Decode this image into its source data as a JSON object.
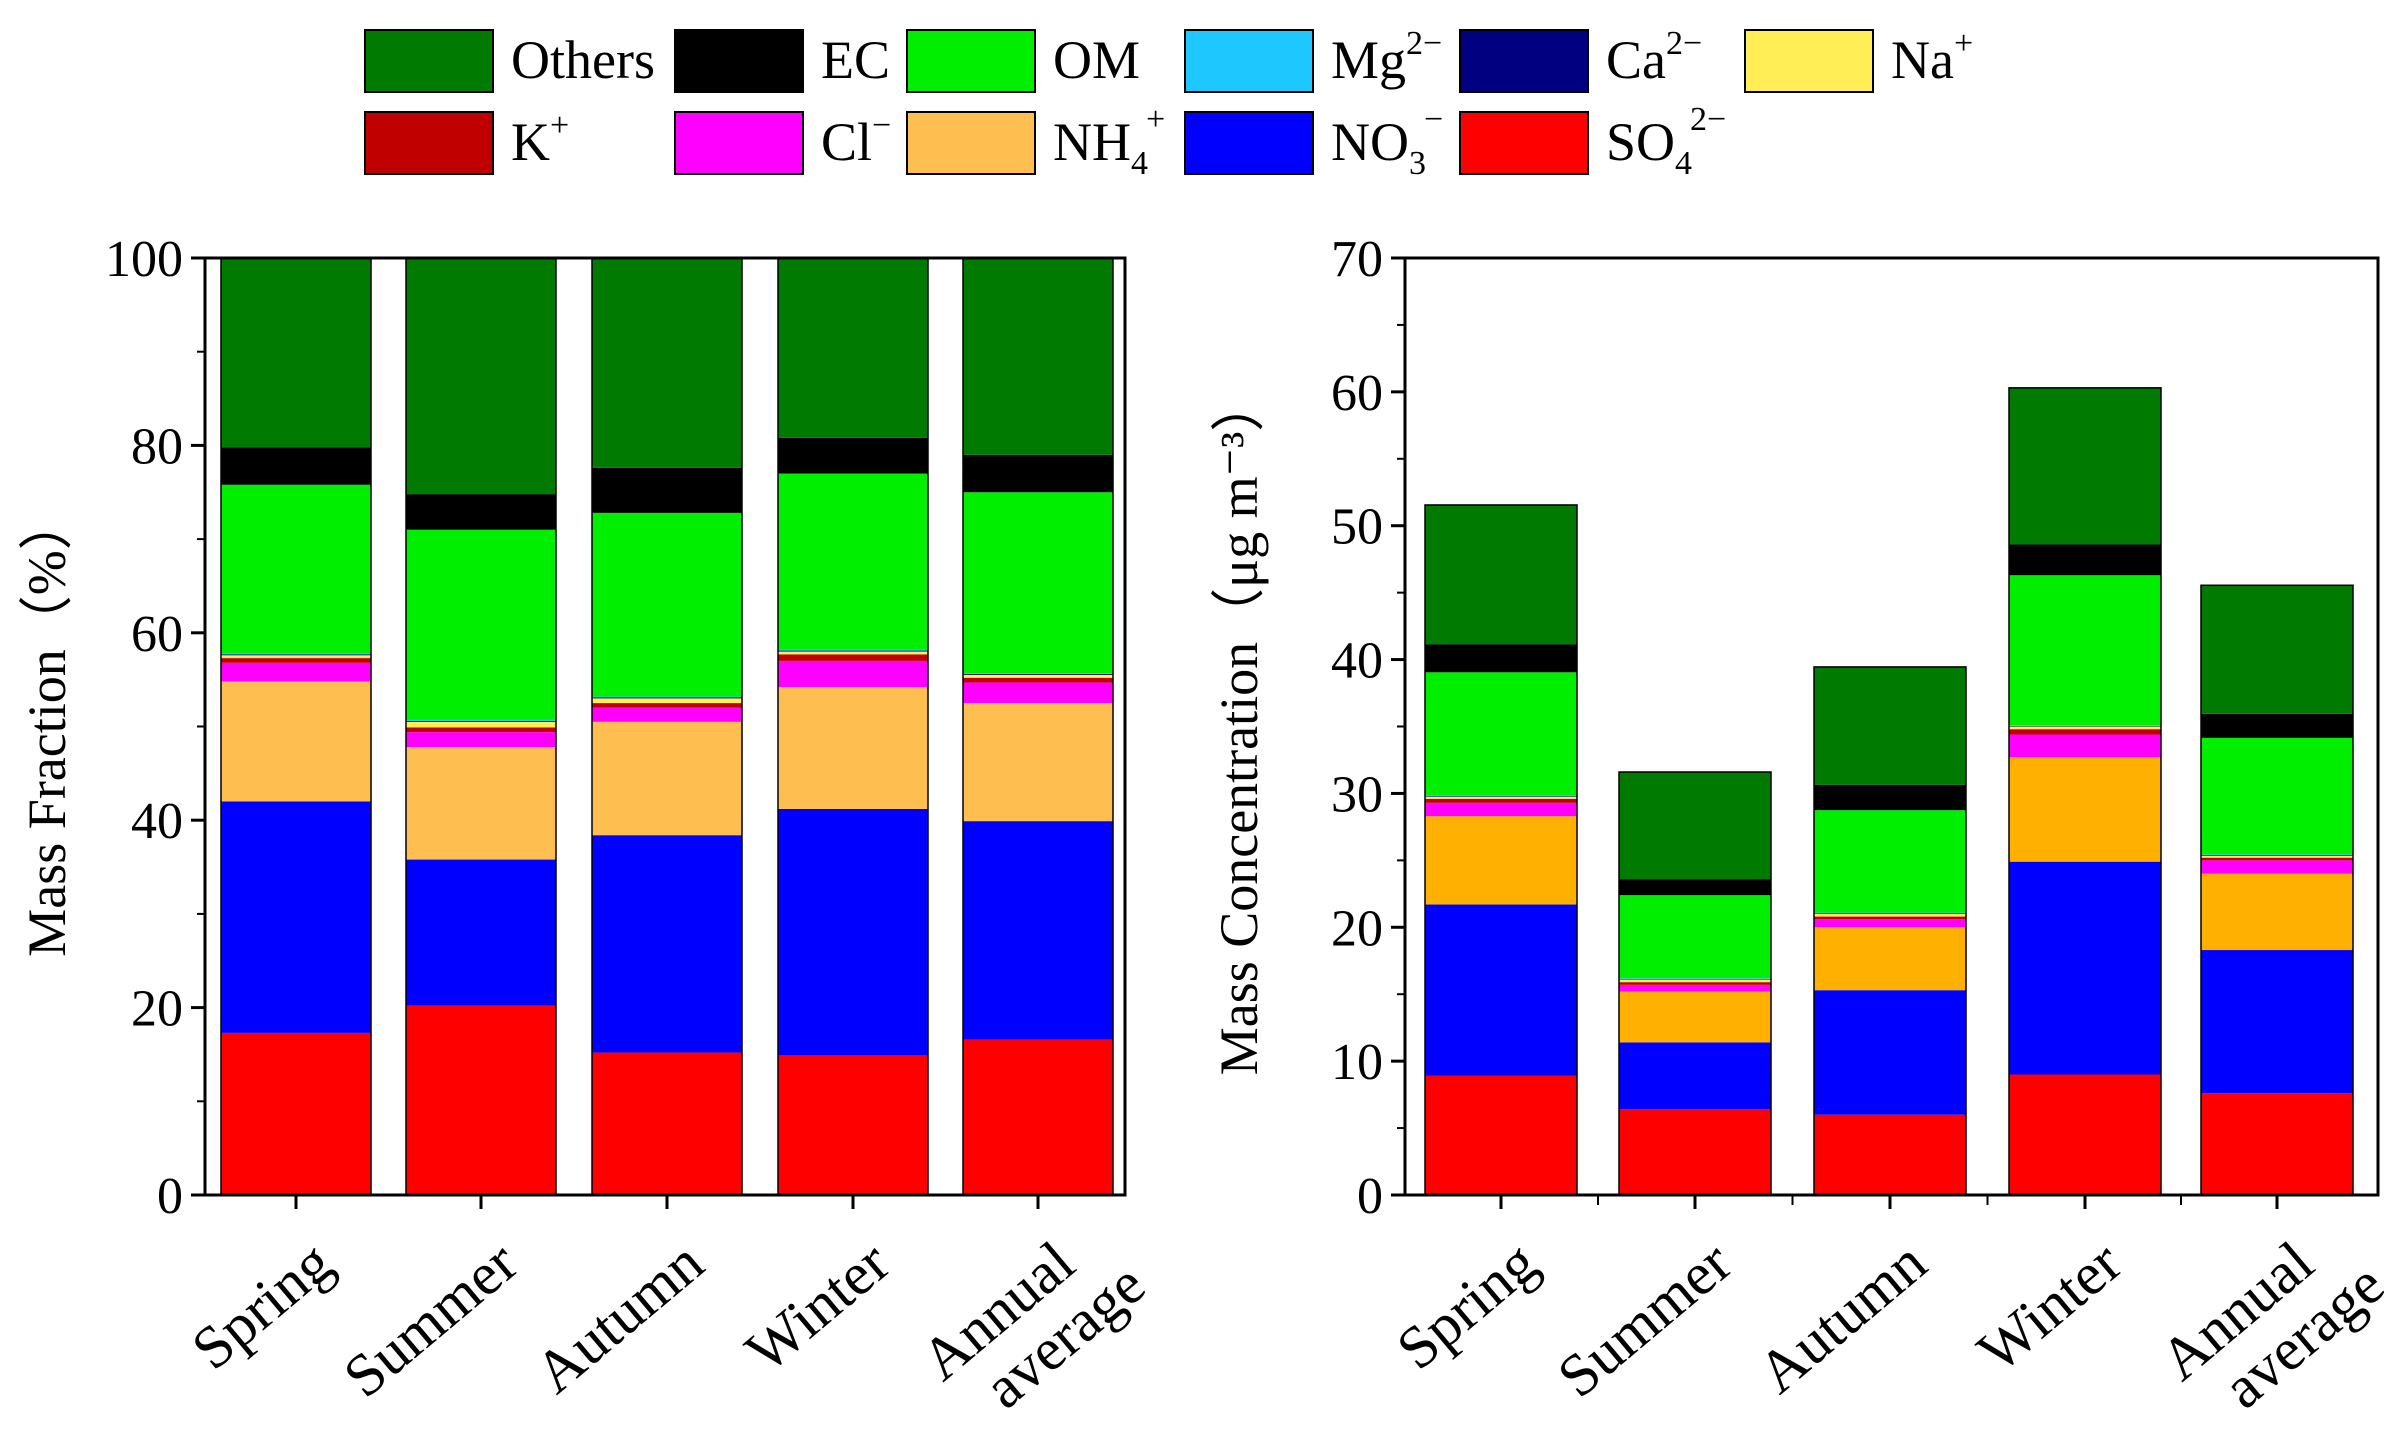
{
  "legend": {
    "rows": [
      [
        "Others",
        "EC",
        "OM",
        "Mg",
        "Ca",
        "Na"
      ],
      [
        "K",
        "Cl",
        "NH4",
        "NO3",
        "SO4"
      ]
    ]
  },
  "series": [
    {
      "key": "SO4",
      "name": "SO",
      "sub": "4",
      "sup": "2−",
      "color": "#ff0000"
    },
    {
      "key": "NO3",
      "name": "NO",
      "sub": "3",
      "sup": "−",
      "color": "#0000ff"
    },
    {
      "key": "NH4",
      "name": "NH",
      "sub": "4",
      "sup": "+",
      "color_left": "#ffbf50",
      "color_right": "#ffb000",
      "color": "#ffbb44"
    },
    {
      "key": "Cl",
      "name": "Cl",
      "sub": "",
      "sup": "−",
      "color": "#ff00ff"
    },
    {
      "key": "K",
      "name": "K",
      "sub": "",
      "sup": "+",
      "color": "#c00000"
    },
    {
      "key": "Na",
      "name": "Na",
      "sub": "",
      "sup": "+",
      "color": "#ffee55"
    },
    {
      "key": "Ca",
      "name": "Ca",
      "sub": "",
      "sup": "2−",
      "color": "#000080"
    },
    {
      "key": "Mg",
      "name": "Mg",
      "sub": "",
      "sup": "2−",
      "color": "#1ec8ff"
    },
    {
      "key": "OM",
      "name": "OM",
      "sub": "",
      "sup": "",
      "color": "#00ee00"
    },
    {
      "key": "EC",
      "name": "EC",
      "sub": "",
      "sup": "",
      "color": "#000000"
    },
    {
      "key": "Others",
      "name": "Others",
      "sub": "",
      "sup": "",
      "color": "#007a00"
    }
  ],
  "chart_data": [
    {
      "type": "bar",
      "stacked": true,
      "categories": [
        [
          "Spring"
        ],
        [
          "Summer"
        ],
        [
          "Autumn"
        ],
        [
          "Winter"
        ],
        [
          "Annual",
          "average"
        ]
      ],
      "ylabel": "Mass Fraction（%）",
      "ylim": [
        0,
        100
      ],
      "yticks": [
        0,
        20,
        40,
        60,
        80,
        100
      ],
      "values": {
        "SO4": [
          17.3,
          20.2,
          15.2,
          14.9,
          16.6
        ],
        "NO3": [
          24.7,
          15.6,
          23.2,
          26.3,
          23.3
        ],
        "NH4": [
          12.8,
          12.0,
          12.1,
          13.0,
          12.6
        ],
        "Cl": [
          2.0,
          1.6,
          1.5,
          2.8,
          2.2
        ],
        "K": [
          0.5,
          0.5,
          0.5,
          0.7,
          0.5
        ],
        "Na": [
          0.3,
          0.6,
          0.5,
          0.3,
          0.3
        ],
        "Ca": [
          0.1,
          0.1,
          0.1,
          0.1,
          0.1
        ],
        "Mg": [
          0.1,
          0.1,
          0.1,
          0.1,
          0.1
        ],
        "OM": [
          18.0,
          20.3,
          19.6,
          18.8,
          19.3
        ],
        "EC": [
          4.0,
          3.8,
          4.8,
          3.8,
          4.0
        ],
        "Others": [
          20.2,
          25.2,
          22.4,
          19.2,
          21.0
        ]
      }
    },
    {
      "type": "bar",
      "stacked": true,
      "categories": [
        [
          "Spring"
        ],
        [
          "Summer"
        ],
        [
          "Autumn"
        ],
        [
          "Winter"
        ],
        [
          "Annual",
          "average"
        ]
      ],
      "ylabel": "Mass Concentration（μg m⁻³）",
      "ylim": [
        0,
        70
      ],
      "yticks": [
        0,
        10,
        20,
        30,
        40,
        50,
        60,
        70
      ],
      "values": {
        "SO4": [
          8.9,
          6.4,
          6.0,
          9.0,
          7.6
        ],
        "NO3": [
          12.8,
          5.0,
          9.3,
          15.9,
          10.7
        ],
        "NH4": [
          6.6,
          3.8,
          4.7,
          7.8,
          5.7
        ],
        "Cl": [
          1.0,
          0.5,
          0.6,
          1.7,
          1.0
        ],
        "K": [
          0.3,
          0.2,
          0.2,
          0.4,
          0.2
        ],
        "Na": [
          0.15,
          0.2,
          0.2,
          0.2,
          0.15
        ],
        "Ca": [
          0.05,
          0.05,
          0.05,
          0.05,
          0.05
        ],
        "Mg": [
          0.05,
          0.05,
          0.05,
          0.05,
          0.05
        ],
        "OM": [
          9.2,
          6.2,
          7.65,
          11.2,
          8.7
        ],
        "EC": [
          2.1,
          1.2,
          1.9,
          2.3,
          1.8
        ],
        "Others": [
          10.4,
          8.0,
          8.8,
          11.7,
          9.6
        ]
      }
    }
  ]
}
